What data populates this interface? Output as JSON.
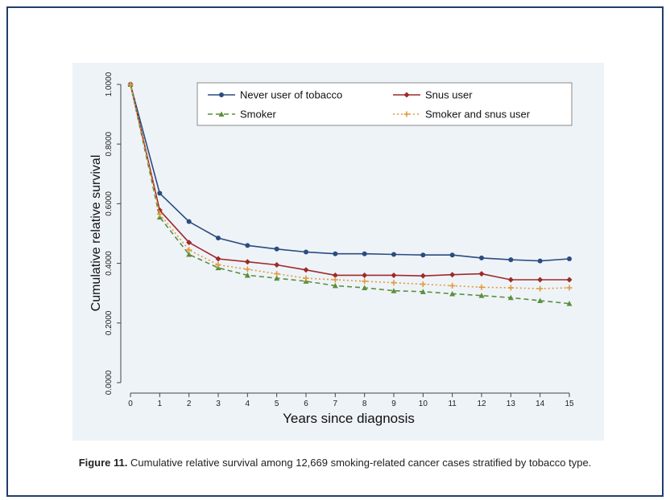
{
  "caption": {
    "label": "Figure 11.",
    "text": "Cumulative relative survival among 12,669 smoking-related cancer cases stratified by tobacco type."
  },
  "chart_data": {
    "type": "line",
    "title": "",
    "xlabel": "Years since diagnosis",
    "ylabel": "Cumulative relative survival",
    "x": [
      0,
      1,
      2,
      3,
      4,
      5,
      6,
      7,
      8,
      9,
      10,
      11,
      12,
      13,
      14,
      15
    ],
    "xlim": [
      0,
      15
    ],
    "ylim": [
      0,
      1
    ],
    "yticks": [
      "0.0000",
      "0.2000",
      "0.4000",
      "0.6000",
      "0.8000",
      "1.0000"
    ],
    "ytick_values": [
      0,
      0.2,
      0.4,
      0.6,
      0.8,
      1.0
    ],
    "legend_position": "top-right",
    "grid": false,
    "series": [
      {
        "name": "Never user of tobacco",
        "color": "#2b4c7e",
        "marker": "circle",
        "dash": "solid",
        "values": [
          1.0,
          0.635,
          0.54,
          0.485,
          0.46,
          0.448,
          0.438,
          0.432,
          0.432,
          0.43,
          0.428,
          0.428,
          0.418,
          0.412,
          0.408,
          0.415
        ]
      },
      {
        "name": "Snus user",
        "color": "#9e2a2a",
        "marker": "diamond",
        "dash": "solid",
        "values": [
          1.0,
          0.578,
          0.47,
          0.415,
          0.405,
          0.395,
          0.378,
          0.36,
          0.36,
          0.36,
          0.358,
          0.362,
          0.365,
          0.345,
          0.345,
          0.345
        ]
      },
      {
        "name": "Smoker",
        "color": "#5a8f3c",
        "marker": "triangle",
        "dash": "6,4",
        "values": [
          1.0,
          0.555,
          0.43,
          0.385,
          0.36,
          0.35,
          0.34,
          0.325,
          0.318,
          0.308,
          0.305,
          0.298,
          0.292,
          0.285,
          0.275,
          0.265
        ]
      },
      {
        "name": "Smoker and snus user",
        "color": "#e39a3b",
        "marker": "plus",
        "dash": "2,3",
        "values": [
          1.0,
          0.565,
          0.445,
          0.395,
          0.38,
          0.365,
          0.35,
          0.345,
          0.34,
          0.335,
          0.33,
          0.325,
          0.32,
          0.318,
          0.315,
          0.318
        ]
      }
    ]
  }
}
